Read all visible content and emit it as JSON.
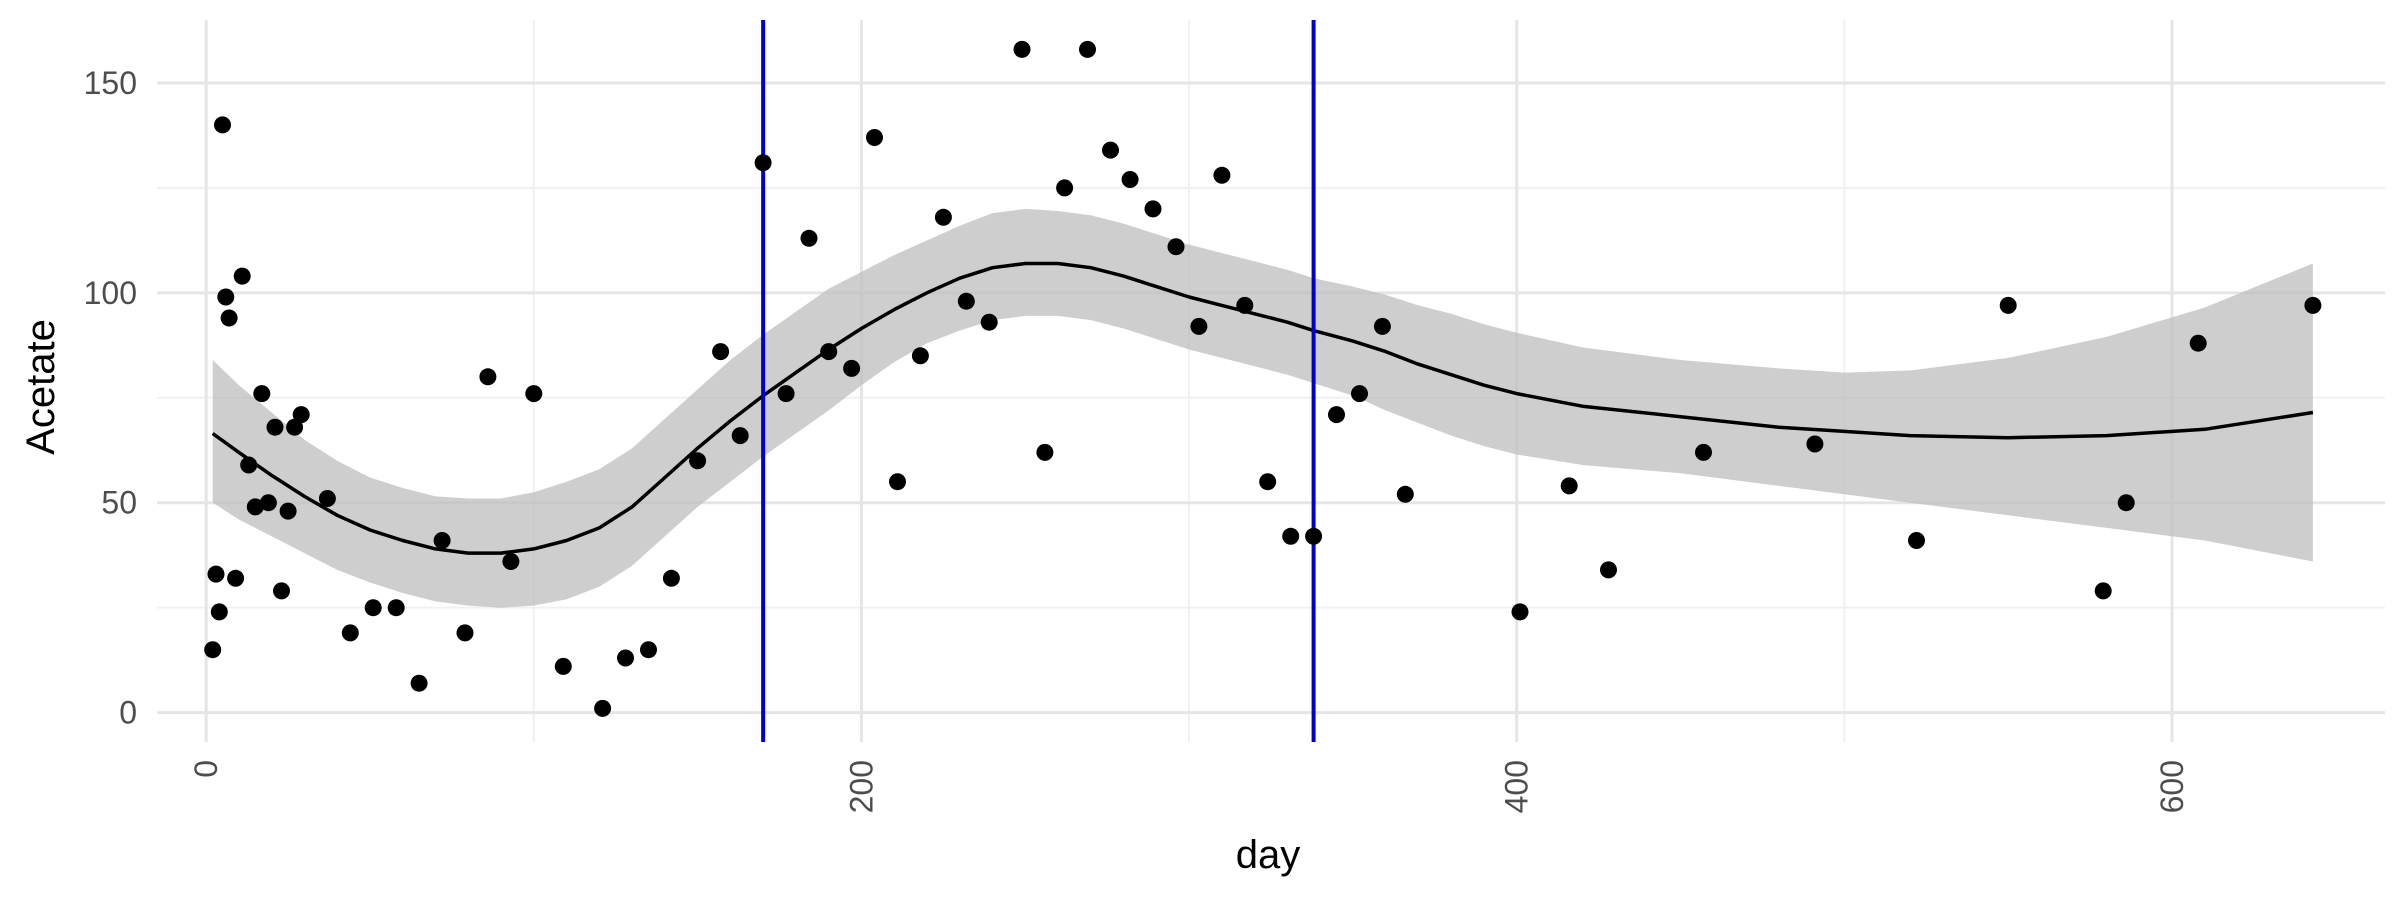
{
  "chart_data": {
    "type": "scatter",
    "title": "",
    "xlabel": "day",
    "ylabel": "Acetate",
    "xlim": [
      -15,
      665
    ],
    "ylim": [
      -7,
      165
    ],
    "x_ticks": [
      0,
      200,
      400,
      600
    ],
    "x_tick_labels": [
      "0",
      "200",
      "400",
      "600"
    ],
    "x_minor_ticks": [
      100,
      300,
      500
    ],
    "y_ticks": [
      0,
      50,
      100,
      150
    ],
    "y_tick_labels": [
      "0",
      "50",
      "100",
      "150"
    ],
    "y_minor_ticks": [
      25,
      75,
      125
    ],
    "grid": true,
    "legend": "none",
    "colors": {
      "points": "#000000",
      "smooth_line": "#000000",
      "confidence_band": "#bebebe",
      "vertical_lines": "#0000cd",
      "grid_major": "#e5e5e5",
      "grid_minor": "#f0f0f0"
    },
    "vertical_lines": [
      170,
      338
    ],
    "points": [
      {
        "x": 2,
        "y": 15
      },
      {
        "x": 3,
        "y": 33
      },
      {
        "x": 4,
        "y": 24
      },
      {
        "x": 5,
        "y": 140
      },
      {
        "x": 6,
        "y": 99
      },
      {
        "x": 7,
        "y": 94
      },
      {
        "x": 9,
        "y": 32
      },
      {
        "x": 11,
        "y": 104
      },
      {
        "x": 13,
        "y": 59
      },
      {
        "x": 15,
        "y": 49
      },
      {
        "x": 17,
        "y": 76
      },
      {
        "x": 19,
        "y": 50
      },
      {
        "x": 21,
        "y": 68
      },
      {
        "x": 23,
        "y": 29
      },
      {
        "x": 25,
        "y": 48
      },
      {
        "x": 27,
        "y": 68
      },
      {
        "x": 29,
        "y": 71
      },
      {
        "x": 37,
        "y": 51
      },
      {
        "x": 44,
        "y": 19
      },
      {
        "x": 51,
        "y": 25
      },
      {
        "x": 58,
        "y": 25
      },
      {
        "x": 65,
        "y": 7
      },
      {
        "x": 72,
        "y": 41
      },
      {
        "x": 79,
        "y": 19
      },
      {
        "x": 86,
        "y": 80
      },
      {
        "x": 93,
        "y": 36
      },
      {
        "x": 100,
        "y": 76
      },
      {
        "x": 109,
        "y": 11
      },
      {
        "x": 121,
        "y": 1
      },
      {
        "x": 128,
        "y": 13
      },
      {
        "x": 135,
        "y": 15
      },
      {
        "x": 142,
        "y": 32
      },
      {
        "x": 150,
        "y": 60
      },
      {
        "x": 157,
        "y": 86
      },
      {
        "x": 163,
        "y": 66
      },
      {
        "x": 170,
        "y": 131
      },
      {
        "x": 177,
        "y": 76
      },
      {
        "x": 184,
        "y": 113
      },
      {
        "x": 190,
        "y": 86
      },
      {
        "x": 197,
        "y": 82
      },
      {
        "x": 204,
        "y": 137
      },
      {
        "x": 211,
        "y": 55
      },
      {
        "x": 218,
        "y": 85
      },
      {
        "x": 225,
        "y": 118
      },
      {
        "x": 232,
        "y": 98
      },
      {
        "x": 239,
        "y": 93
      },
      {
        "x": 249,
        "y": 158
      },
      {
        "x": 256,
        "y": 62
      },
      {
        "x": 262,
        "y": 125
      },
      {
        "x": 269,
        "y": 158
      },
      {
        "x": 276,
        "y": 134
      },
      {
        "x": 282,
        "y": 127
      },
      {
        "x": 289,
        "y": 120
      },
      {
        "x": 296,
        "y": 111
      },
      {
        "x": 303,
        "y": 92
      },
      {
        "x": 310,
        "y": 128
      },
      {
        "x": 317,
        "y": 97
      },
      {
        "x": 324,
        "y": 55
      },
      {
        "x": 331,
        "y": 42
      },
      {
        "x": 338,
        "y": 42
      },
      {
        "x": 345,
        "y": 71
      },
      {
        "x": 352,
        "y": 76
      },
      {
        "x": 359,
        "y": 92
      },
      {
        "x": 366,
        "y": 52
      },
      {
        "x": 401,
        "y": 24
      },
      {
        "x": 416,
        "y": 54
      },
      {
        "x": 428,
        "y": 34
      },
      {
        "x": 457,
        "y": 62
      },
      {
        "x": 491,
        "y": 64
      },
      {
        "x": 522,
        "y": 41
      },
      {
        "x": 550,
        "y": 97
      },
      {
        "x": 579,
        "y": 29
      },
      {
        "x": 586,
        "y": 50
      },
      {
        "x": 608,
        "y": 88
      },
      {
        "x": 643,
        "y": 97
      }
    ],
    "smooth": {
      "x": [
        2,
        10,
        20,
        30,
        40,
        50,
        60,
        70,
        80,
        90,
        100,
        110,
        120,
        130,
        140,
        150,
        160,
        170,
        180,
        190,
        200,
        210,
        220,
        230,
        240,
        250,
        260,
        270,
        280,
        290,
        300,
        310,
        320,
        330,
        338,
        350,
        360,
        370,
        380,
        390,
        400,
        420,
        450,
        480,
        500,
        520,
        550,
        580,
        610,
        643
      ],
      "y": [
        66.5,
        62,
        56.5,
        51.5,
        47,
        43.5,
        41,
        39,
        38,
        38,
        39,
        41,
        44,
        49,
        56,
        63,
        69.5,
        75.5,
        81,
        86.5,
        91.5,
        96,
        100,
        103.5,
        106,
        107,
        107,
        106,
        104,
        101.5,
        99,
        97,
        95,
        93,
        91,
        88.5,
        86,
        83,
        80.5,
        78,
        76,
        73,
        70.5,
        68,
        67,
        66,
        65.5,
        66,
        67.5,
        71.5
      ],
      "lower": [
        50,
        46,
        42,
        38,
        34,
        31,
        28.5,
        26.5,
        25.5,
        25,
        25.5,
        27,
        30,
        35,
        42,
        49,
        55,
        61,
        66.5,
        72,
        78,
        83.5,
        88,
        91,
        93.5,
        94.5,
        94.5,
        93.5,
        91.5,
        89,
        86.5,
        84.5,
        82.5,
        80.5,
        78.5,
        75.5,
        72,
        69,
        66,
        63.5,
        61.5,
        59,
        57,
        54,
        52,
        50,
        47,
        44,
        41,
        36
      ],
      "upper": [
        84,
        78,
        71.5,
        65,
        60,
        56,
        53.5,
        51.5,
        51,
        51,
        52.5,
        55,
        58,
        63,
        70,
        77,
        84,
        90,
        95.5,
        101,
        105,
        109,
        112.5,
        116,
        119,
        120,
        119.5,
        118.5,
        116.5,
        114,
        111.5,
        109.5,
        107.5,
        105.5,
        103.5,
        101.5,
        99.5,
        97,
        95,
        92.5,
        90.5,
        87,
        84,
        82,
        81,
        81.5,
        84.5,
        89.5,
        96.5,
        107
      ]
    }
  }
}
